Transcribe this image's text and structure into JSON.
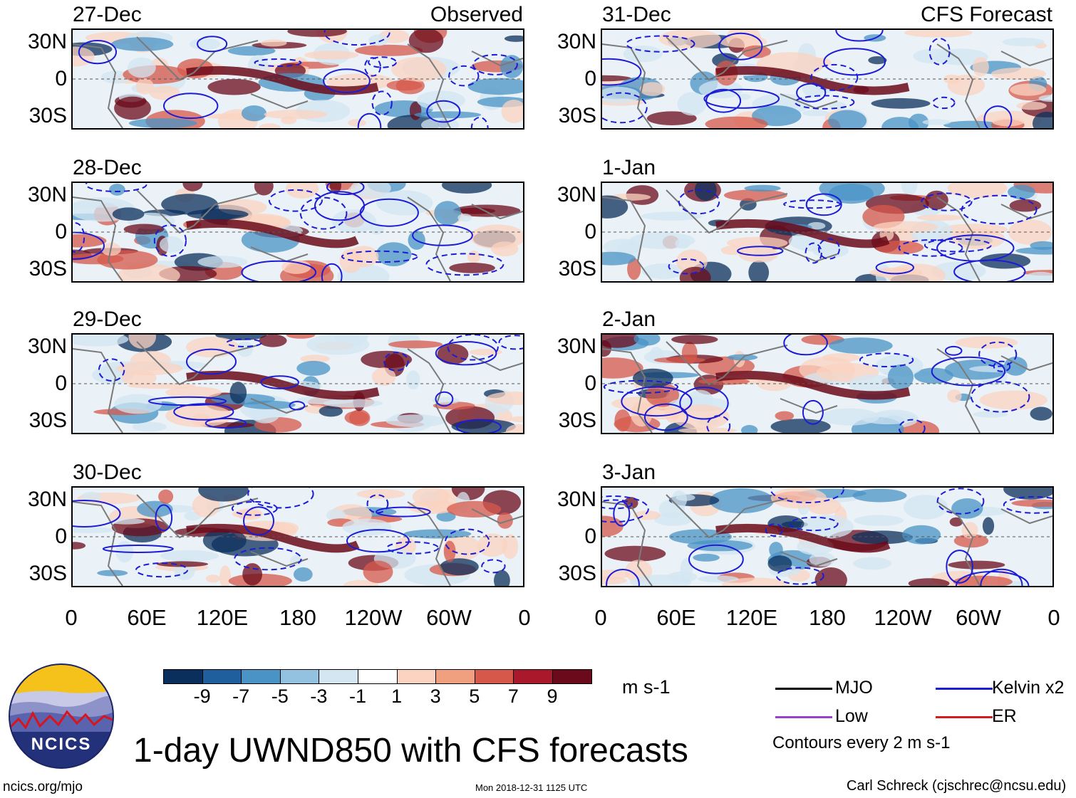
{
  "figure": {
    "title": "1-day UWND850 with CFS forecasts",
    "units": "m s-1",
    "site": "ncics.org/mjo",
    "timestamp": "Mon 2018-12-31 1125 UTC",
    "author": "Carl Schreck (cjschrec@ncsu.edu)",
    "logo_text": "NCICS"
  },
  "columns": {
    "left_tag": "Observed",
    "right_tag": "CFS Forecast"
  },
  "chart_data": {
    "type": "heatmap",
    "title": "1-day UWND850 with CFS forecasts",
    "variable": "850-hPa zonal wind (shaded) with filtered-wave contours",
    "units": "m s-1",
    "x_ticks": [
      "0",
      "60E",
      "120E",
      "180",
      "120W",
      "60W",
      "0"
    ],
    "y_ticks": [
      "30N",
      "0",
      "30S"
    ],
    "panels": [
      {
        "date": "27-Dec",
        "source": "Observed"
      },
      {
        "date": "28-Dec",
        "source": "Observed"
      },
      {
        "date": "29-Dec",
        "source": "Observed"
      },
      {
        "date": "30-Dec",
        "source": "Observed"
      },
      {
        "date": "31-Dec",
        "source": "CFS Forecast"
      },
      {
        "date": "1-Jan",
        "source": "CFS Forecast"
      },
      {
        "date": "2-Jan",
        "source": "CFS Forecast"
      },
      {
        "date": "3-Jan",
        "source": "CFS Forecast"
      }
    ],
    "colorbar": {
      "ticks": [
        "-9",
        "-7",
        "-5",
        "-3",
        "-1",
        "1",
        "3",
        "5",
        "7",
        "9"
      ],
      "colors": [
        "#0b2f5c",
        "#1f5f9e",
        "#4a93c6",
        "#93c1e0",
        "#d3e6f2",
        "#ffffff",
        "#fbd3c0",
        "#f0a07f",
        "#d5584b",
        "#a9192b",
        "#6b0a1a"
      ]
    },
    "legend": [
      {
        "label": "MJO",
        "color": "#000000"
      },
      {
        "label": "Kelvin x2",
        "color": "#1c1cd6"
      },
      {
        "label": "Low",
        "color": "#9a3fc9"
      },
      {
        "label": "ER",
        "color": "#d61c1c"
      }
    ],
    "contour_note": "Contours every 2 m s-1"
  },
  "colors": {
    "neg_strong": "#0b2f5c",
    "neg": "#4a93c6",
    "neg_light": "#d3e6f2",
    "pos_light": "#fbd3c0",
    "pos": "#d5584b",
    "pos_strong": "#6b0a1a",
    "land": "#7a7a7a",
    "kelvin": "#1c1cd6"
  }
}
